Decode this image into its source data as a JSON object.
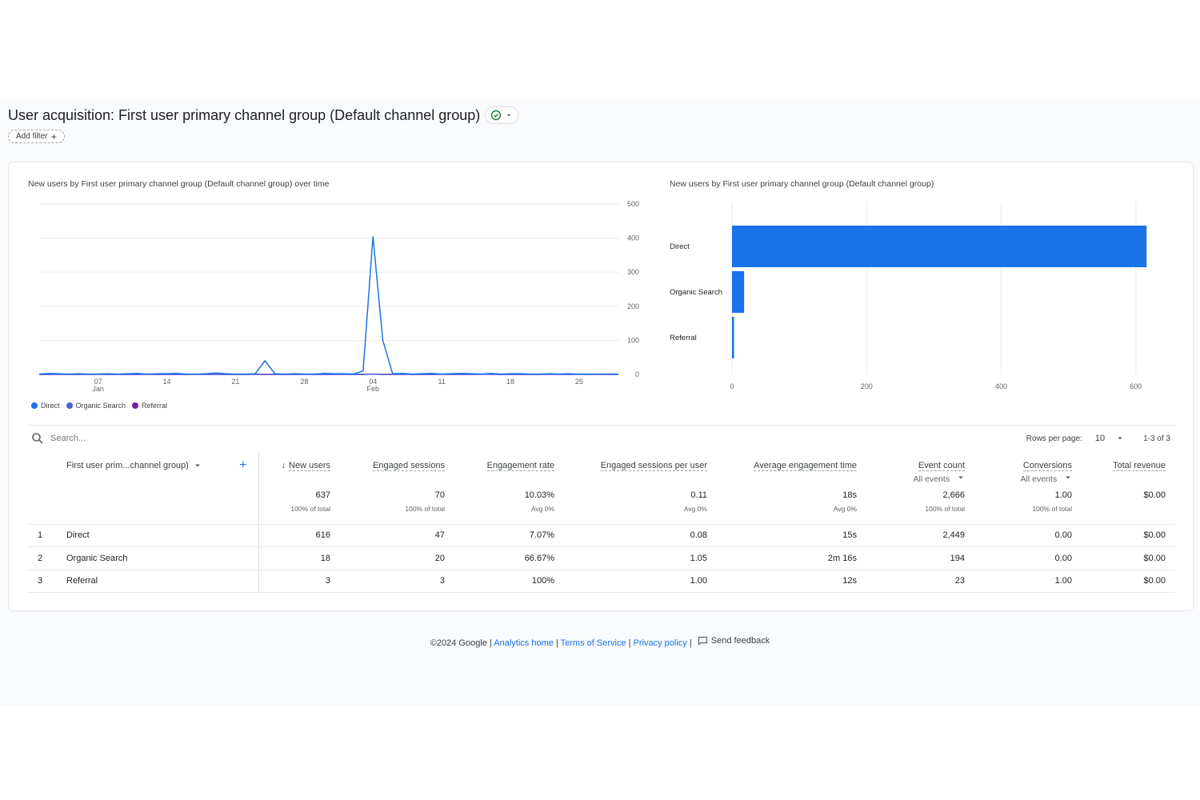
{
  "header": {
    "title": "User acquisition: First user primary channel group (Default channel group)",
    "add_filter_label": "Add filter"
  },
  "line_chart": {
    "title": "New users by First user primary channel group (Default channel group) over time",
    "legend": [
      {
        "label": "Direct",
        "color": "#1a73e8"
      },
      {
        "label": "Organic Search",
        "color": "#4c5fd5"
      },
      {
        "label": "Referral",
        "color": "#7b1fa2"
      }
    ]
  },
  "bar_chart": {
    "title": "New users by First user primary channel group (Default channel group)"
  },
  "chart_data": [
    {
      "type": "line",
      "title": "New users by First user primary channel group (Default channel group) over time",
      "x": [
        "Jan 1",
        "Jan 2",
        "Jan 3",
        "Jan 4",
        "Jan 5",
        "Jan 6",
        "Jan 7",
        "Jan 8",
        "Jan 9",
        "Jan 10",
        "Jan 11",
        "Jan 12",
        "Jan 13",
        "Jan 14",
        "Jan 15",
        "Jan 16",
        "Jan 17",
        "Jan 18",
        "Jan 19",
        "Jan 20",
        "Jan 21",
        "Jan 22",
        "Jan 23",
        "Jan 24",
        "Jan 25",
        "Jan 26",
        "Jan 27",
        "Jan 28",
        "Jan 29",
        "Jan 30",
        "Jan 31",
        "Feb 1",
        "Feb 2",
        "Feb 3",
        "Feb 4",
        "Feb 5",
        "Feb 6",
        "Feb 7",
        "Feb 8",
        "Feb 9",
        "Feb 10",
        "Feb 11",
        "Feb 12",
        "Feb 13",
        "Feb 14",
        "Feb 15",
        "Feb 16",
        "Feb 17",
        "Feb 18",
        "Feb 19",
        "Feb 20",
        "Feb 21",
        "Feb 22",
        "Feb 23",
        "Feb 24",
        "Feb 25",
        "Feb 26",
        "Feb 27",
        "Feb 28",
        "Feb 29"
      ],
      "x_ticks": [
        {
          "label": "07",
          "sub": "Jan",
          "at": "Jan 7"
        },
        {
          "label": "14",
          "sub": "",
          "at": "Jan 14"
        },
        {
          "label": "21",
          "sub": "",
          "at": "Jan 21"
        },
        {
          "label": "28",
          "sub": "",
          "at": "Jan 28"
        },
        {
          "label": "04",
          "sub": "Feb",
          "at": "Feb 4"
        },
        {
          "label": "11",
          "sub": "",
          "at": "Feb 11"
        },
        {
          "label": "18",
          "sub": "",
          "at": "Feb 18"
        },
        {
          "label": "25",
          "sub": "",
          "at": "Feb 25"
        }
      ],
      "y_ticks": [
        0,
        100,
        200,
        300,
        400,
        500
      ],
      "ylim": [
        0,
        500
      ],
      "series": [
        {
          "name": "Direct",
          "color": "#1a73e8",
          "values": [
            1,
            3,
            2,
            1,
            2,
            1,
            1,
            2,
            1,
            2,
            3,
            1,
            2,
            2,
            3,
            1,
            1,
            2,
            4,
            2,
            1,
            1,
            2,
            40,
            2,
            1,
            2,
            1,
            1,
            3,
            2,
            2,
            1,
            10,
            405,
            100,
            2,
            3,
            1,
            2,
            3,
            1,
            2,
            3,
            2,
            1,
            3,
            1,
            2,
            2,
            1,
            1,
            2,
            1,
            2,
            1,
            1,
            1,
            1,
            1
          ]
        },
        {
          "name": "Organic Search",
          "color": "#4c5fd5",
          "values": [
            0,
            0,
            1,
            0,
            0,
            0,
            1,
            0,
            0,
            0,
            0,
            1,
            0,
            0,
            0,
            0,
            1,
            0,
            0,
            0,
            0,
            0,
            1,
            0,
            0,
            0,
            0,
            1,
            0,
            0,
            0,
            1,
            0,
            0,
            1,
            0,
            0,
            1,
            0,
            0,
            0,
            1,
            0,
            0,
            0,
            0,
            1,
            0,
            0,
            0,
            0,
            0,
            1,
            0,
            0,
            0,
            0,
            1,
            0,
            0
          ]
        },
        {
          "name": "Referral",
          "color": "#7b1fa2",
          "values": [
            0,
            0,
            0,
            0,
            0,
            0,
            0,
            0,
            0,
            0,
            0,
            0,
            0,
            0,
            0,
            0,
            0,
            0,
            0,
            0,
            0,
            0,
            0,
            0,
            0,
            0,
            0,
            0,
            0,
            0,
            0,
            0,
            0,
            0,
            1,
            0,
            0,
            0,
            0,
            0,
            0,
            0,
            0,
            0,
            0,
            1,
            0,
            0,
            0,
            0,
            0,
            0,
            0,
            0,
            0,
            1,
            0,
            0,
            0,
            0
          ]
        }
      ]
    },
    {
      "type": "bar",
      "title": "New users by First user primary channel group (Default channel group)",
      "categories": [
        "Direct",
        "Organic Search",
        "Referral"
      ],
      "values": [
        616,
        18,
        3
      ],
      "x_ticks": [
        0,
        200,
        400,
        600
      ],
      "xlim": [
        0,
        643
      ],
      "color": "#1a73e8"
    }
  ],
  "table": {
    "search_placeholder": "Search...",
    "rows_per_page_label": "Rows per page:",
    "rows_per_page_value": "10",
    "pagination": "1-3 of 3",
    "dimension_header": "First user prim...channel group)",
    "columns": [
      {
        "label": "New users",
        "sub": ""
      },
      {
        "label": "Engaged sessions",
        "sub": ""
      },
      {
        "label": "Engagement rate",
        "sub": ""
      },
      {
        "label": "Engaged sessions per user",
        "sub": ""
      },
      {
        "label": "Average engagement time",
        "sub": ""
      },
      {
        "label": "Event count",
        "sub": "All events"
      },
      {
        "label": "Conversions",
        "sub": "All events"
      },
      {
        "label": "Total revenue",
        "sub": ""
      }
    ],
    "totals": [
      {
        "value": "637",
        "note": "100% of total"
      },
      {
        "value": "70",
        "note": "100% of total"
      },
      {
        "value": "10.03%",
        "note": "Avg 0%"
      },
      {
        "value": "0.11",
        "note": "Avg 0%"
      },
      {
        "value": "18s",
        "note": "Avg 0%"
      },
      {
        "value": "2,666",
        "note": "100% of total"
      },
      {
        "value": "1.00",
        "note": "100% of total"
      },
      {
        "value": "$0.00",
        "note": ""
      }
    ],
    "rows": [
      {
        "index": "1",
        "name": "Direct",
        "cells": [
          "616",
          "47",
          "7.07%",
          "0.08",
          "15s",
          "2,449",
          "0.00",
          "$0.00"
        ]
      },
      {
        "index": "2",
        "name": "Organic Search",
        "cells": [
          "18",
          "20",
          "66.67%",
          "1.05",
          "2m 16s",
          "194",
          "0.00",
          "$0.00"
        ]
      },
      {
        "index": "3",
        "name": "Referral",
        "cells": [
          "3",
          "3",
          "100%",
          "1.00",
          "12s",
          "23",
          "1.00",
          "$0.00"
        ]
      }
    ]
  },
  "footer": {
    "copyright": "©2024 Google",
    "links": [
      "Analytics home",
      "Terms of Service",
      "Privacy policy"
    ],
    "sep": "|",
    "feedback": "Send feedback"
  }
}
